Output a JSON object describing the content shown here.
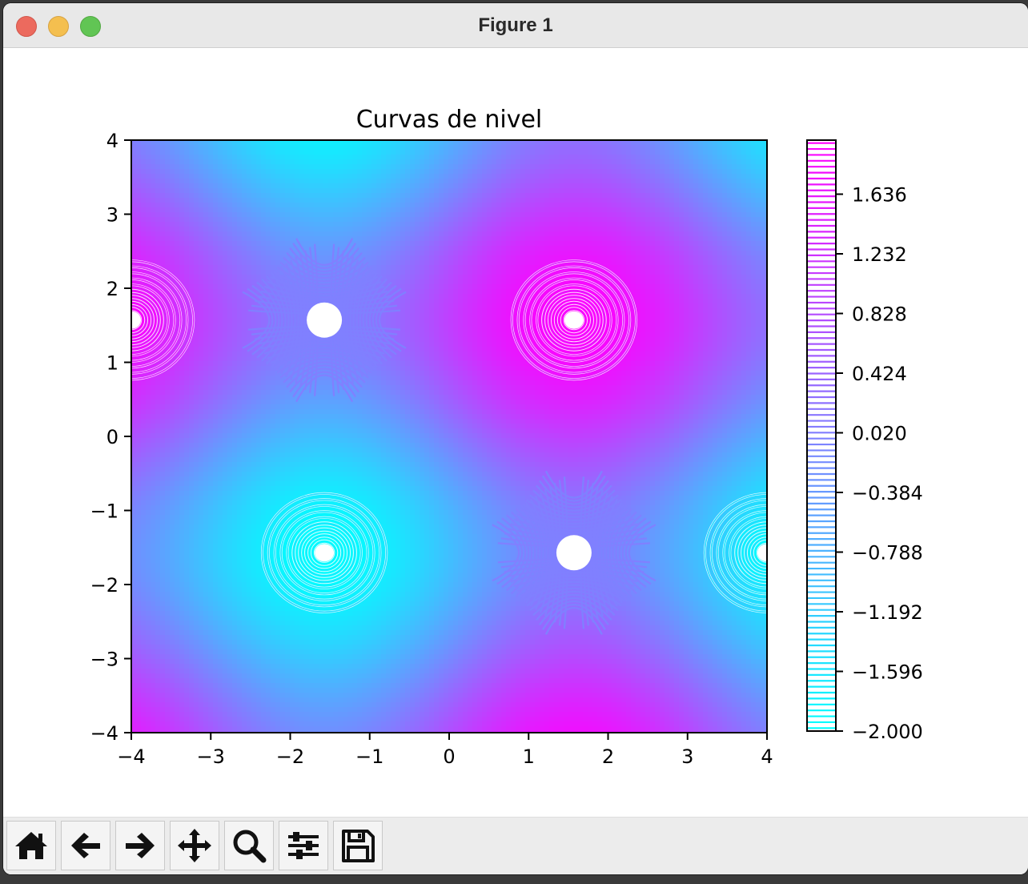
{
  "window": {
    "title": "Figure 1"
  },
  "toolbar": {
    "tools": [
      {
        "name": "home-icon"
      },
      {
        "name": "back-arrow-icon"
      },
      {
        "name": "forward-arrow-icon"
      },
      {
        "name": "pan-icon"
      },
      {
        "name": "zoom-icon"
      },
      {
        "name": "configure-subplots-icon"
      },
      {
        "name": "save-icon"
      }
    ]
  },
  "chart_data": {
    "type": "contour",
    "title": "Curvas de nivel",
    "xlabel": "",
    "ylabel": "",
    "xlim": [
      -4,
      4
    ],
    "ylim": [
      -4,
      4
    ],
    "x_ticks": [
      "−4",
      "−3",
      "−2",
      "−1",
      "0",
      "1",
      "2",
      "3",
      "4"
    ],
    "y_ticks": [
      "−4",
      "−3",
      "−2",
      "−1",
      "0",
      "1",
      "2",
      "3",
      "4"
    ],
    "colormap": "cool",
    "colormap_colors": {
      "low": "#00ffff",
      "high": "#ff00ff"
    },
    "levels": {
      "min": -2.0,
      "max": 2.0,
      "count": 100
    },
    "colorbar": {
      "ticks": [
        "1.636",
        "1.232",
        "0.828",
        "0.424",
        "0.020",
        "−0.384",
        "−0.788",
        "−1.192",
        "−1.596",
        "−2.000"
      ]
    },
    "features": {
      "maxima": [
        [
          1.5708,
          1.5708
        ],
        [
          -4,
          1.5708
        ]
      ],
      "minima": [
        [
          -1.5708,
          -1.5708
        ],
        [
          4,
          -1.5708
        ]
      ],
      "saddles": [
        [
          -1.5708,
          1.5708
        ],
        [
          1.5708,
          -1.5708
        ]
      ]
    }
  }
}
